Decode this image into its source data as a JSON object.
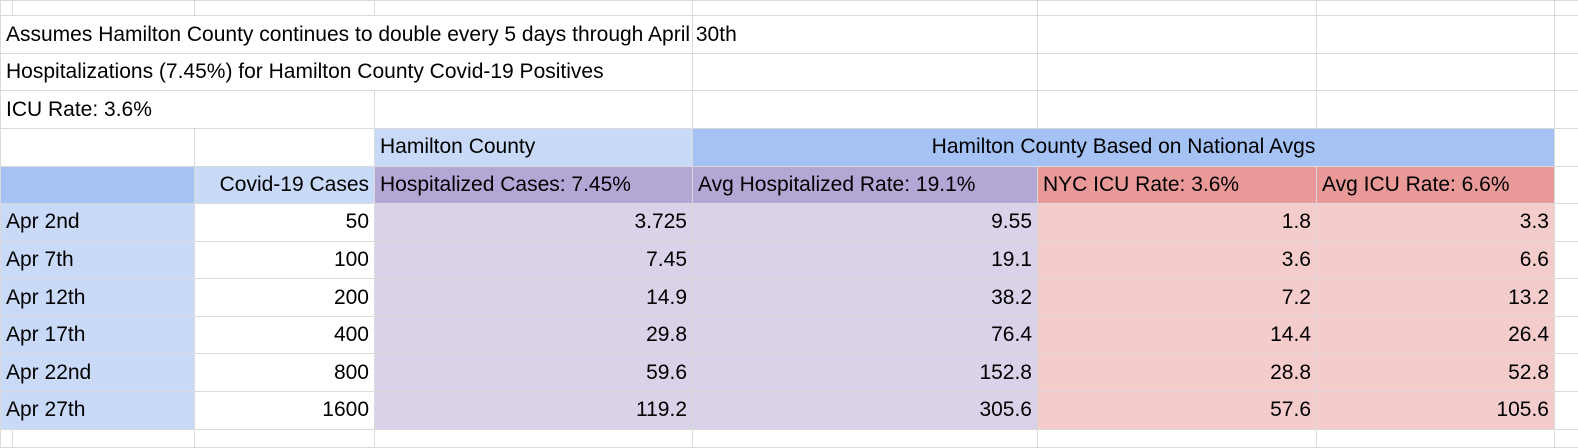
{
  "notes": [
    "Assumes Hamilton County continues to double every 5 days through April 30th",
    "Hospitalizations (7.45%) for Hamilton County Covid-19 Positives",
    "ICU Rate: 3.6%"
  ],
  "group_headers": {
    "hamilton_county": "Hamilton County",
    "national": "Hamilton County Based on National Avgs"
  },
  "columns": {
    "cases": "Covid-19 Cases",
    "hospitalized": "Hospitalized Cases: 7.45%",
    "avg_hospitalized": "Avg Hospitalized Rate: 19.1%",
    "nyc_icu": "NYC ICU Rate: 3.6%",
    "avg_icu": "Avg ICU Rate: 6.6%"
  },
  "rows": [
    {
      "date": "Apr 2nd",
      "cases": "50",
      "hospitalized": "3.725",
      "avg_hospitalized": "9.55",
      "nyc_icu": "1.8",
      "avg_icu": "3.3"
    },
    {
      "date": "Apr 7th",
      "cases": "100",
      "hospitalized": "7.45",
      "avg_hospitalized": "19.1",
      "nyc_icu": "3.6",
      "avg_icu": "6.6"
    },
    {
      "date": "Apr 12th",
      "cases": "200",
      "hospitalized": "14.9",
      "avg_hospitalized": "38.2",
      "nyc_icu": "7.2",
      "avg_icu": "13.2"
    },
    {
      "date": "Apr 17th",
      "cases": "400",
      "hospitalized": "29.8",
      "avg_hospitalized": "76.4",
      "nyc_icu": "14.4",
      "avg_icu": "26.4"
    },
    {
      "date": "Apr 22nd",
      "cases": "800",
      "hospitalized": "59.6",
      "avg_hospitalized": "152.8",
      "nyc_icu": "28.8",
      "avg_icu": "52.8"
    },
    {
      "date": "Apr 27th",
      "cases": "1600",
      "hospitalized": "119.2",
      "avg_hospitalized": "305.6",
      "nyc_icu": "57.6",
      "avg_icu": "105.6"
    }
  ],
  "colors": {
    "date_column": "#c9daf8",
    "header_blue": "#a4c2f4",
    "hospitalized_header": "#b4a7d6",
    "hospitalized_cells": "#d9d2e9",
    "icu_header": "#ea9999",
    "icu_cells": "#f4cccc",
    "gridline": "#dadada"
  }
}
